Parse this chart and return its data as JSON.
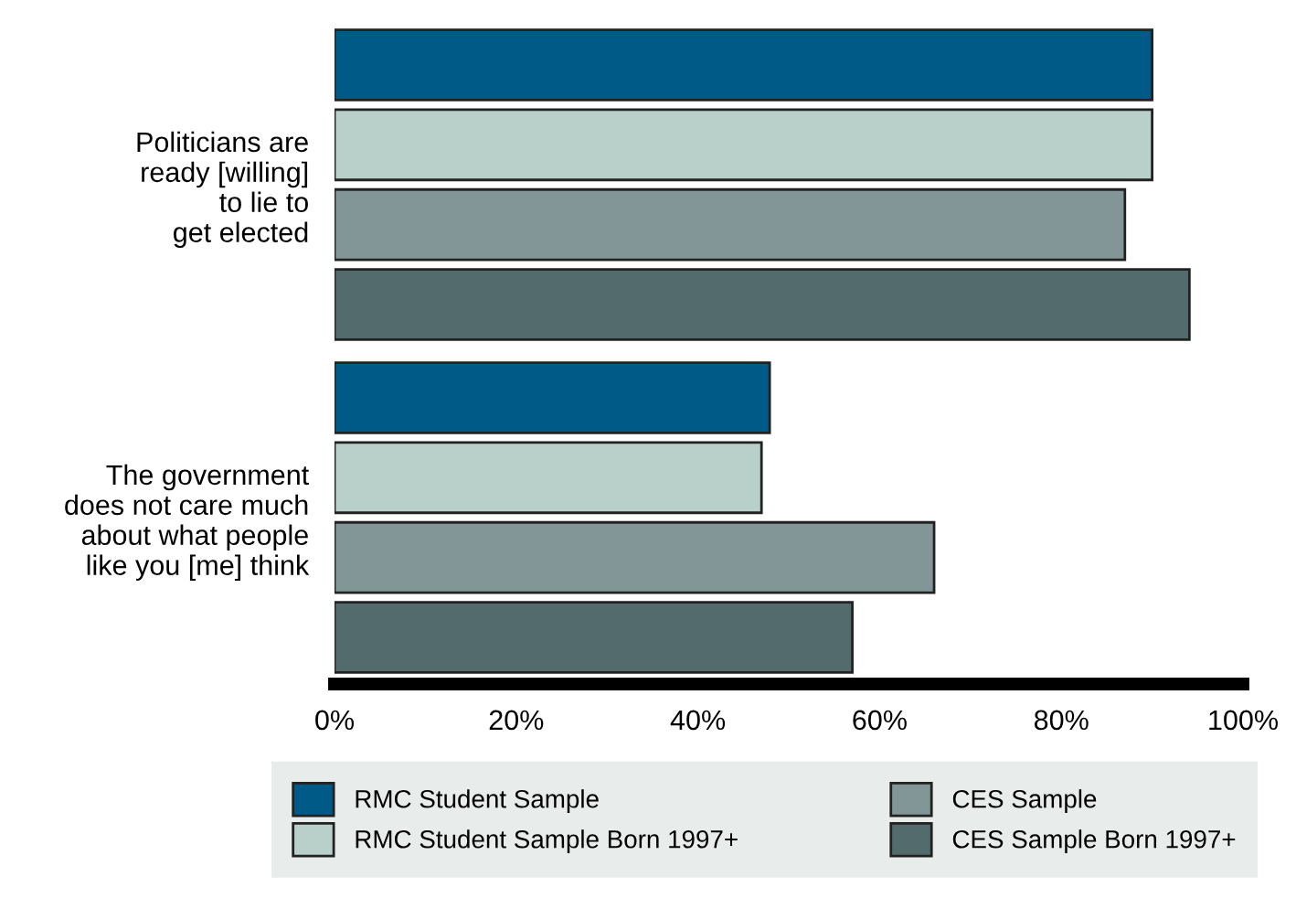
{
  "chart_data": {
    "type": "bar",
    "orientation": "horizontal",
    "categories": [
      "Politicians are\nready [willing]\nto lie to\nget elected",
      "The government\ndoes not care much\nabout what people\nlike you [me] think"
    ],
    "series": [
      {
        "name": "RMC Student Sample",
        "color": "#005a87",
        "values": [
          90.0,
          47.9
        ]
      },
      {
        "name": "RMC Student Sample Born 1997+",
        "color": "#b8cfca",
        "values": [
          90.0,
          47.0
        ]
      },
      {
        "name": "CES Sample",
        "color": "#829697",
        "values": [
          87.0,
          66.0
        ]
      },
      {
        "name": "CES Sample Born 1997+",
        "color": "#546b6e",
        "values": [
          94.1,
          57.0
        ]
      }
    ],
    "xlim": [
      0,
      100
    ],
    "xticks": [
      {
        "value": 0,
        "label": "0%"
      },
      {
        "value": 20,
        "label": "20%"
      },
      {
        "value": 40,
        "label": "40%"
      },
      {
        "value": 60,
        "label": "60%"
      },
      {
        "value": 80,
        "label": "80%"
      },
      {
        "value": 100,
        "label": "100%"
      }
    ],
    "grid": false,
    "legend": "bottom"
  }
}
